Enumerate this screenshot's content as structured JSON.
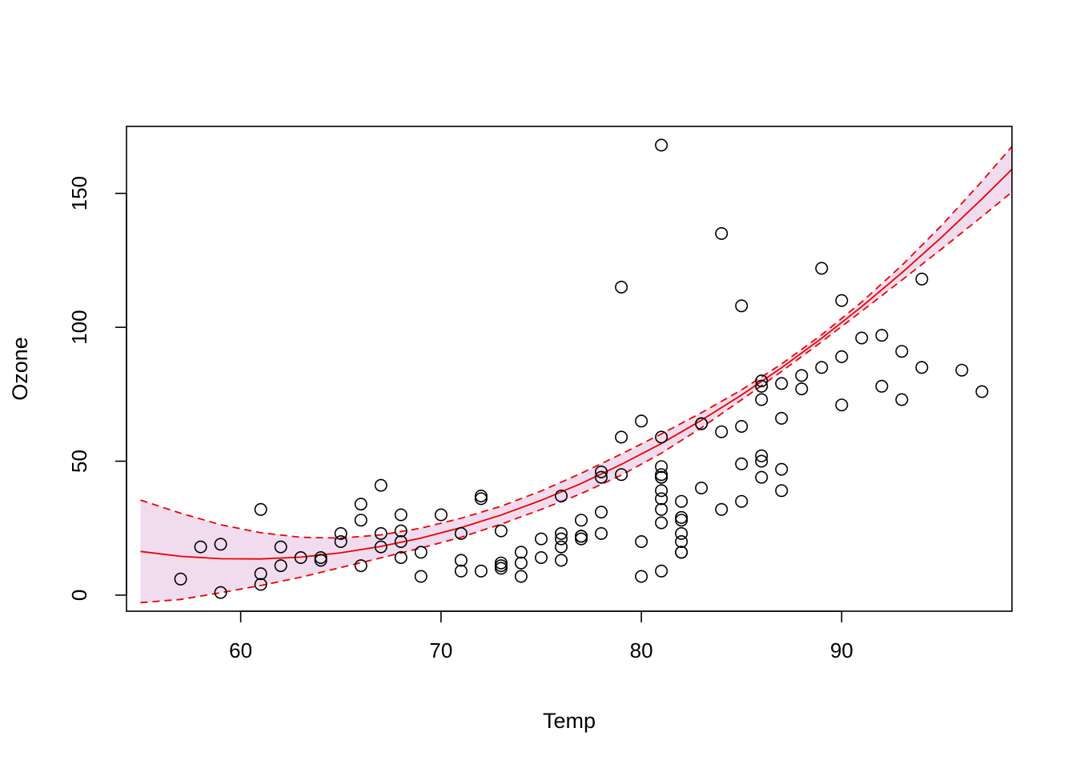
{
  "chart_data": {
    "type": "scatter",
    "title": "",
    "xlabel": "Temp",
    "ylabel": "Ozone",
    "xlim": [
      54.3,
      98.5
    ],
    "ylim": [
      -6,
      175
    ],
    "x_ticks": [
      60,
      70,
      80,
      90
    ],
    "y_ticks": [
      0,
      50,
      100,
      150
    ],
    "grid": false,
    "legend": "none",
    "colors": {
      "points": "#000000",
      "fit": "#ee0000",
      "band": "#f0dcee"
    },
    "series": [
      {
        "type": "scatter",
        "x": [
          57,
          58,
          59,
          59,
          61,
          61,
          61,
          62,
          62,
          63,
          64,
          64,
          65,
          65,
          66,
          66,
          66,
          67,
          67,
          67,
          68,
          68,
          68,
          68,
          69,
          69,
          70,
          71,
          71,
          71,
          72,
          72,
          72,
          73,
          73,
          73,
          73,
          74,
          74,
          74,
          75,
          75,
          76,
          76,
          76,
          76,
          76,
          77,
          77,
          77,
          77,
          78,
          78,
          78,
          78,
          79,
          79,
          79,
          80,
          80,
          80,
          81,
          81,
          81,
          81,
          81,
          81,
          81,
          81,
          81,
          81,
          81,
          82,
          82,
          82,
          82,
          82,
          82,
          82,
          83,
          83,
          83,
          84,
          84,
          84,
          85,
          85,
          85,
          85,
          86,
          86,
          86,
          86,
          86,
          86,
          87,
          87,
          87,
          87,
          88,
          88,
          89,
          89,
          90,
          90,
          90,
          91,
          92,
          92,
          93,
          93,
          94,
          94,
          96,
          97
        ],
        "y": [
          6,
          18,
          1,
          19,
          32,
          8,
          4,
          18,
          11,
          14,
          14,
          13,
          23,
          20,
          34,
          28,
          11,
          41,
          23,
          18,
          30,
          24,
          20,
          14,
          16,
          7,
          30,
          23,
          13,
          9,
          37,
          36,
          9,
          24,
          12,
          11,
          10,
          16,
          12,
          7,
          21,
          14,
          37,
          23,
          21,
          18,
          13,
          28,
          22,
          22,
          21,
          46,
          44,
          31,
          23,
          115,
          59,
          45,
          65,
          20,
          7,
          168,
          59,
          48,
          45,
          44,
          39,
          36,
          32,
          27,
          9,
          44,
          35,
          29,
          28,
          23,
          20,
          16,
          16,
          64,
          64,
          40,
          135,
          61,
          32,
          108,
          63,
          49,
          35,
          80,
          78,
          73,
          52,
          50,
          44,
          79,
          66,
          47,
          39,
          82,
          77,
          122,
          85,
          110,
          89,
          71,
          96,
          97,
          78,
          91,
          73,
          118,
          85,
          84,
          76
        ]
      },
      {
        "type": "line",
        "name": "",
        "x": [
          55,
          57,
          59,
          61,
          63,
          65,
          67,
          69,
          71,
          73,
          75,
          77,
          79,
          81,
          83,
          85,
          87,
          89,
          91,
          93,
          95,
          97,
          98.5
        ],
        "y": [
          16.3,
          14.5,
          13.6,
          13.5,
          14.2,
          15.8,
          18.2,
          21.3,
          25.2,
          29.9,
          35.4,
          41.7,
          48.8,
          56.6,
          65.3,
          74.7,
          84.9,
          95.9,
          107.7,
          120.3,
          133.7,
          147.9,
          159.0
        ]
      },
      {
        "type": "line",
        "name": "",
        "x": [
          55,
          57,
          59,
          61,
          63,
          65,
          67,
          69,
          71,
          73,
          75,
          77,
          79,
          81,
          83,
          85,
          87,
          89,
          91,
          93,
          95,
          97,
          98.5
        ],
        "y": [
          35.5,
          30.6,
          26.3,
          23.3,
          21.6,
          21.3,
          22.5,
          25.0,
          28.7,
          33.2,
          38.9,
          45.5,
          52.7,
          60.2,
          68.1,
          76.6,
          86.3,
          97.2,
          109.4,
          123.1,
          138.1,
          154.5,
          167.5
        ]
      },
      {
        "type": "line",
        "name": "",
        "x": [
          55,
          57,
          59,
          61,
          63,
          65,
          67,
          69,
          71,
          73,
          75,
          77,
          79,
          81,
          83,
          85,
          87,
          89,
          91,
          93,
          95,
          97,
          98.5
        ],
        "y": [
          -2.8,
          -1.6,
          0.9,
          3.6,
          6.7,
          10.3,
          13.9,
          17.6,
          21.6,
          26.5,
          32.0,
          37.9,
          44.8,
          53.0,
          62.5,
          72.9,
          83.5,
          94.6,
          106.0,
          117.6,
          129.3,
          141.3,
          150.5
        ]
      }
    ]
  }
}
